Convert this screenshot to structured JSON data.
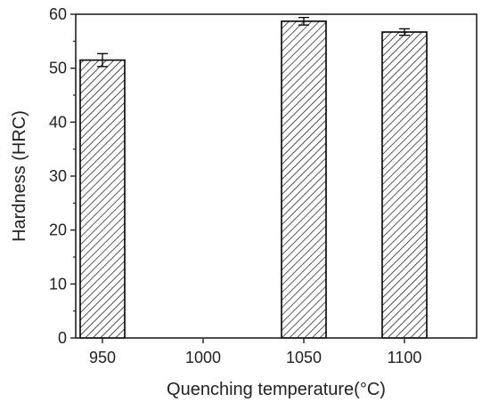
{
  "chart_data": {
    "type": "bar",
    "categories": [
      "950",
      "1000",
      "1050",
      "1100"
    ],
    "values": [
      51.5,
      null,
      58.7,
      56.7
    ],
    "errors": [
      1.2,
      null,
      0.7,
      0.6
    ],
    "xlabel": "Quenching temperature(°C)",
    "ylabel": "Hardness (HRC)",
    "ylim": [
      0,
      60
    ],
    "yticks": [
      "0",
      "10",
      "20",
      "30",
      "40",
      "50",
      "60"
    ],
    "grid": false,
    "bar_fill": "diagonal-hatch",
    "colors": {
      "bar_stroke": "#000000",
      "hatch": "#000000",
      "axis": "#222222",
      "background": "#ffffff"
    }
  }
}
